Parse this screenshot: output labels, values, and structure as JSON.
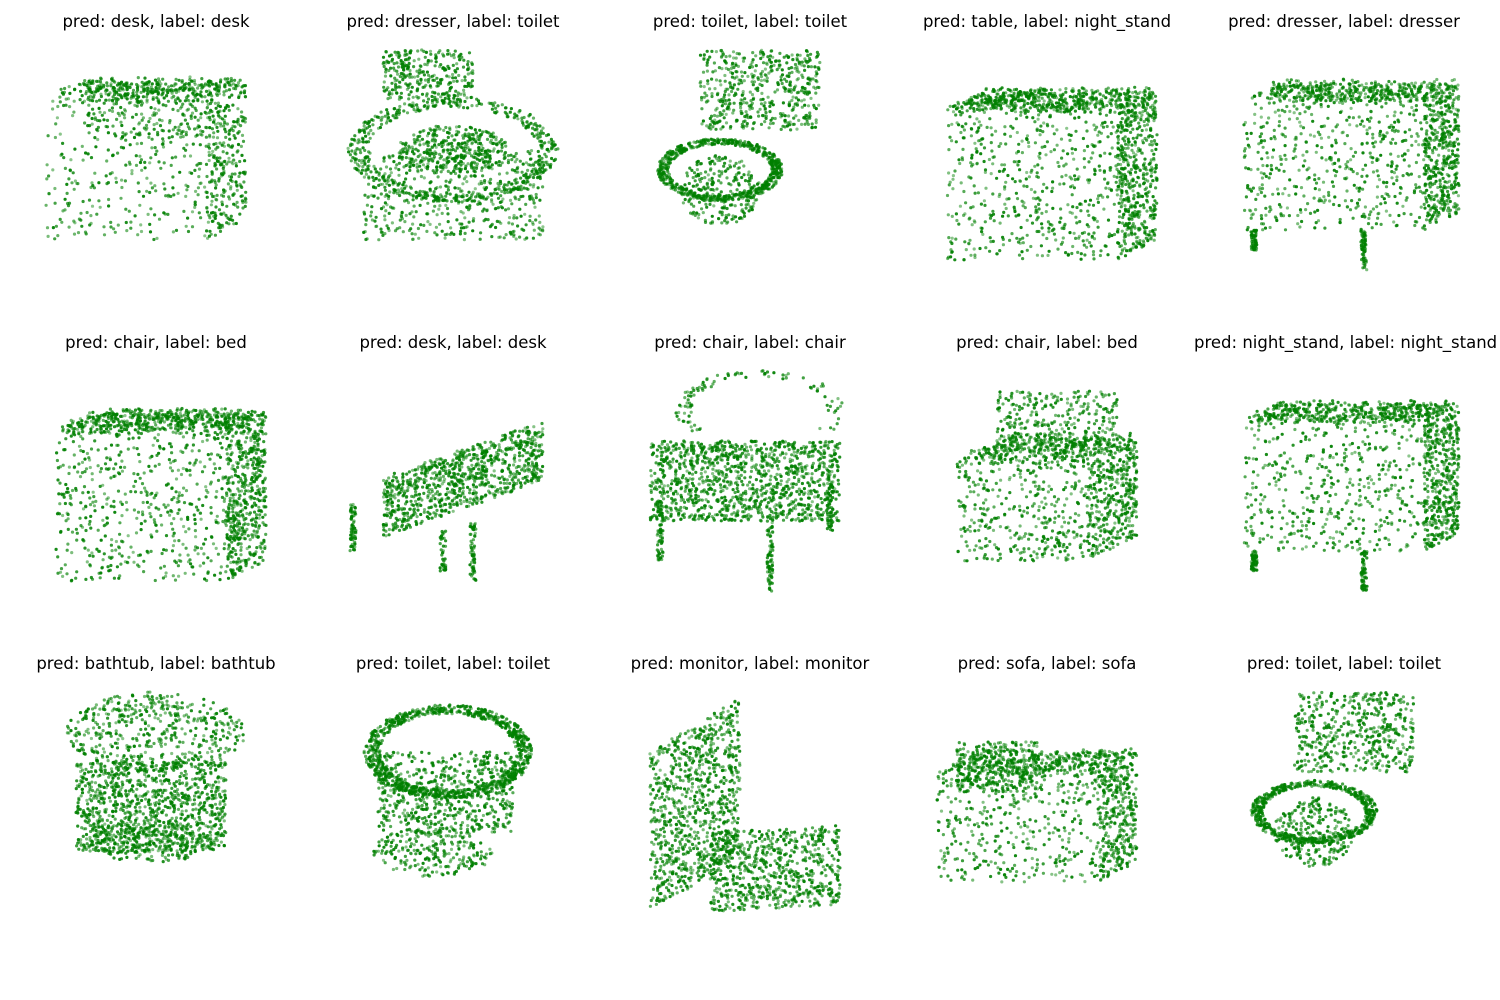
{
  "figure": {
    "point_color": "#008000",
    "panels": [
      {
        "title": "pred: desk, label: desk",
        "pred": "desk",
        "label": "desk",
        "shape": "desk"
      },
      {
        "title": "pred: dresser, label: toilet",
        "pred": "dresser",
        "label": "toilet",
        "shape": "toilet_front"
      },
      {
        "title": "pred: toilet, label: toilet",
        "pred": "toilet",
        "label": "toilet",
        "shape": "toilet_side"
      },
      {
        "title": "pred: table, label: night_stand",
        "pred": "table",
        "label": "night_stand",
        "shape": "box"
      },
      {
        "title": "pred: dresser, label: dresser",
        "pred": "dresser",
        "label": "dresser",
        "shape": "box_legs"
      },
      {
        "title": "pred: chair, label: bed",
        "pred": "chair",
        "label": "bed",
        "shape": "box"
      },
      {
        "title": "pred: desk, label: desk",
        "pred": "desk",
        "label": "desk",
        "shape": "slab_legs"
      },
      {
        "title": "pred: chair, label: chair",
        "pred": "chair",
        "label": "chair",
        "shape": "chair"
      },
      {
        "title": "pred: chair, label: bed",
        "pred": "chair",
        "label": "bed",
        "shape": "bed"
      },
      {
        "title": "pred: night_stand, label: night_stand",
        "pred": "night_stand",
        "label": "night_stand",
        "shape": "box_legs"
      },
      {
        "title": "pred: bathtub, label: bathtub",
        "pred": "bathtub",
        "label": "bathtub",
        "shape": "tub"
      },
      {
        "title": "pred: toilet, label: toilet",
        "pred": "toilet",
        "label": "toilet",
        "shape": "bowl"
      },
      {
        "title": "pred: monitor, label: monitor",
        "pred": "monitor",
        "label": "monitor",
        "shape": "monitor"
      },
      {
        "title": "pred: sofa, label: sofa",
        "pred": "sofa",
        "label": "sofa",
        "shape": "sofa"
      },
      {
        "title": "pred: toilet, label: toilet",
        "pred": "toilet",
        "label": "toilet",
        "shape": "toilet_side"
      }
    ]
  }
}
